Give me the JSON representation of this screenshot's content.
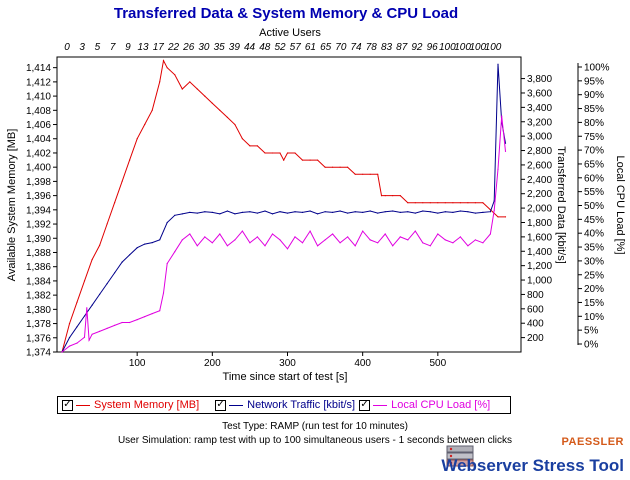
{
  "chart_data": {
    "type": "line",
    "title": "Transferred Data & System Memory & CPU Load",
    "xlabel": "Time since start of test [s]",
    "x_top_label": "Active Users",
    "xlim": [
      0,
      600
    ],
    "x_ticks": [
      100,
      200,
      300,
      400,
      500
    ],
    "top_ticks": [
      "0",
      "3",
      "5",
      "7",
      "9",
      "13",
      "17",
      "22",
      "26",
      "30",
      "35",
      "39",
      "44",
      "48",
      "52",
      "57",
      "61",
      "65",
      "70",
      "74",
      "78",
      "83",
      "87",
      "92",
      "96",
      "100",
      "100",
      "100",
      "100"
    ],
    "y_left": {
      "label": "Available System Memory [MB]",
      "range": [
        1374,
        1415.5
      ],
      "ticks": [
        1374,
        1376,
        1378,
        1380,
        1382,
        1384,
        1386,
        1388,
        1390,
        1392,
        1394,
        1396,
        1398,
        1400,
        1402,
        1404,
        1406,
        1408,
        1410,
        1412,
        1414
      ],
      "tick_labels": [
        "1,374",
        "1,376",
        "1,378",
        "1,380",
        "1,382",
        "1,384",
        "1,386",
        "1,388",
        "1,390",
        "1,392",
        "1,394",
        "1,396",
        "1,398",
        "1,400",
        "1,402",
        "1,404",
        "1,406",
        "1,408",
        "1,410",
        "1,412",
        "1,414"
      ]
    },
    "y_right1": {
      "label": "Transferred Data [kbit/s]",
      "range": [
        0,
        4100
      ],
      "ticks": [
        200,
        400,
        600,
        800,
        1000,
        1200,
        1400,
        1600,
        1800,
        2000,
        2200,
        2400,
        2600,
        2800,
        3000,
        3200,
        3400,
        3600,
        3800
      ],
      "tick_labels": [
        "200",
        "400",
        "600",
        "800",
        "1,000",
        "1,200",
        "1,400",
        "1,600",
        "1,800",
        "2,000",
        "2,200",
        "2,400",
        "2,600",
        "2,800",
        "3,000",
        "3,200",
        "3,400",
        "3,600",
        "3,800"
      ]
    },
    "y_right2": {
      "label": "Local CPU Load [%]",
      "range": [
        0,
        100
      ],
      "ticks": [
        0,
        5,
        10,
        15,
        20,
        25,
        30,
        35,
        40,
        45,
        50,
        55,
        60,
        65,
        70,
        75,
        80,
        85,
        90,
        95,
        100
      ],
      "tick_labels": [
        "0%",
        "5%",
        "10%",
        "15%",
        "20%",
        "25%",
        "30%",
        "35%",
        "40%",
        "45%",
        "50%",
        "55%",
        "60%",
        "65%",
        "70%",
        "75%",
        "80%",
        "85%",
        "90%",
        "95%",
        "100%"
      ]
    },
    "grid": false,
    "legend_position": "bottom",
    "series": [
      {
        "name": "System Memory [MB]",
        "axis": "left",
        "color": "#e00000",
        "x": [
          0,
          10,
          20,
          30,
          40,
          50,
          60,
          70,
          80,
          90,
          100,
          110,
          120,
          130,
          135,
          140,
          150,
          160,
          170,
          180,
          190,
          200,
          210,
          220,
          230,
          240,
          250,
          260,
          270,
          280,
          290,
          295,
          300,
          310,
          320,
          330,
          340,
          350,
          360,
          370,
          380,
          390,
          400,
          410,
          420,
          425,
          430,
          440,
          450,
          460,
          470,
          480,
          490,
          500,
          510,
          520,
          530,
          540,
          550,
          560,
          570,
          580,
          590
        ],
        "values": [
          1374,
          1378,
          1381,
          1384,
          1387,
          1389,
          1392,
          1395,
          1398,
          1401,
          1404,
          1406,
          1408,
          1412,
          1415,
          1414,
          1413,
          1411,
          1412,
          1411,
          1410,
          1409,
          1408,
          1407,
          1406,
          1404,
          1403,
          1403,
          1402,
          1402,
          1402,
          1401,
          1402,
          1402,
          1401,
          1401,
          1401,
          1400,
          1400,
          1400,
          1400,
          1399,
          1399,
          1399,
          1399,
          1396,
          1396,
          1396,
          1396,
          1395,
          1395,
          1395,
          1395,
          1395,
          1395,
          1395,
          1395,
          1395,
          1395,
          1395,
          1394,
          1393,
          1393
        ]
      },
      {
        "name": "Network Traffic [kbit/s]",
        "axis": "right1",
        "color": "#00008b",
        "x": [
          0,
          10,
          20,
          30,
          40,
          50,
          60,
          70,
          80,
          90,
          100,
          110,
          120,
          130,
          140,
          150,
          160,
          170,
          180,
          190,
          200,
          210,
          220,
          230,
          240,
          250,
          260,
          270,
          280,
          290,
          300,
          310,
          320,
          330,
          340,
          350,
          360,
          370,
          380,
          390,
          400,
          410,
          420,
          430,
          440,
          450,
          460,
          470,
          480,
          490,
          500,
          510,
          520,
          530,
          540,
          550,
          560,
          570,
          575,
          580,
          585,
          590
        ],
        "values": [
          0,
          200,
          350,
          500,
          650,
          800,
          950,
          1100,
          1250,
          1350,
          1450,
          1500,
          1520,
          1560,
          1800,
          1900,
          1920,
          1940,
          1930,
          1950,
          1940,
          1920,
          1960,
          1920,
          1940,
          1950,
          1930,
          1960,
          1920,
          1950,
          1930,
          1950,
          1940,
          1960,
          1920,
          1950,
          1940,
          1960,
          1930,
          1950,
          1940,
          1960,
          1930,
          1950,
          1960,
          1940,
          1950,
          1930,
          1960,
          1950,
          1930,
          1950,
          1940,
          1960,
          1950,
          1930,
          1940,
          1950,
          2100,
          4000,
          3200,
          2900
        ]
      },
      {
        "name": "Local CPU Load [%]",
        "axis": "right2",
        "color": "#e000e0",
        "x": [
          0,
          10,
          20,
          30,
          33,
          36,
          40,
          50,
          60,
          70,
          80,
          90,
          100,
          110,
          120,
          130,
          135,
          140,
          150,
          160,
          170,
          180,
          190,
          200,
          210,
          220,
          230,
          240,
          250,
          260,
          270,
          280,
          290,
          300,
          310,
          320,
          330,
          340,
          350,
          360,
          370,
          380,
          390,
          400,
          410,
          420,
          430,
          440,
          450,
          460,
          470,
          480,
          490,
          500,
          510,
          520,
          530,
          540,
          550,
          560,
          570,
          575,
          580,
          585,
          590
        ],
        "values": [
          0,
          2,
          3,
          5,
          15,
          4,
          6,
          7,
          8,
          9,
          10,
          10,
          11,
          12,
          13,
          14,
          20,
          30,
          34,
          38,
          40,
          36,
          39,
          37,
          40,
          36,
          38,
          41,
          37,
          39,
          36,
          40,
          38,
          35,
          39,
          37,
          41,
          36,
          38,
          40,
          37,
          39,
          36,
          41,
          38,
          37,
          40,
          36,
          39,
          38,
          41,
          37,
          36,
          40,
          38,
          37,
          39,
          36,
          38,
          37,
          40,
          48,
          62,
          80,
          68
        ]
      }
    ]
  },
  "legend": {
    "items": [
      {
        "label": "System Memory [MB]",
        "color": "#e00000",
        "checked": "✓"
      },
      {
        "label": "Network Traffic [kbit/s]",
        "color": "#00008b",
        "checked": "✓"
      },
      {
        "label": "Local CPU Load [%]",
        "color": "#e000e0",
        "checked": "✓"
      }
    ]
  },
  "footer": {
    "line1": "Test Type: RAMP (run test for 10 minutes)",
    "line2": "User Simulation: ramp test with up to 100 simultaneous users - 1 seconds between clicks"
  },
  "brand": {
    "vendor": "PAESSLER",
    "product": "Webserver Stress Tool"
  }
}
